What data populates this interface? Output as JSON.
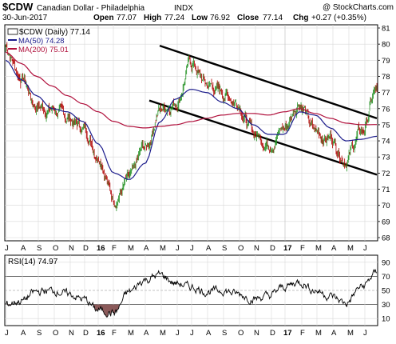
{
  "header": {
    "symbol": "$CDW",
    "name": "Canadian Dollar - Philadelphia",
    "exchange": "INDX",
    "watermark": "@ StockCharts.com",
    "date": "30-Jun-2017",
    "open_label": "Open",
    "open": "77.07",
    "high_label": "High",
    "high": "77.24",
    "low_label": "Low",
    "low": "76.92",
    "close_label": "Close",
    "close": "77.14",
    "chg_label": "Chg",
    "chg": "+0.27 (+0.35%)"
  },
  "legend": {
    "price": "$CDW (Daily) 77.14",
    "ma50": "MA(50) 74.28",
    "ma200": "MA(200) 75.01",
    "rsi": "RSI(14) 74.97"
  },
  "colors": {
    "up": "#1f8f1f",
    "down": "#b00000",
    "ma50": "#1c1c8c",
    "ma200": "#b0103c",
    "channel": "#000000",
    "rsi_line": "#000000",
    "rsi_fill": "#8b5a5a",
    "grid": "#d8d8d8"
  },
  "chart_data": [
    {
      "type": "line",
      "title": "$CDW Canadian Dollar - Philadelphia INDX",
      "ylim": [
        68,
        81
      ],
      "yticks": [
        68,
        69,
        70,
        71,
        72,
        73,
        74,
        75,
        76,
        77,
        78,
        79,
        80,
        81
      ],
      "x_tick_labels": [
        "J",
        "A",
        "S",
        "O",
        "N",
        "D",
        "16",
        "F",
        "M",
        "A",
        "M",
        "J",
        "J",
        "A",
        "S",
        "O",
        "N",
        "D",
        "17",
        "F",
        "M",
        "A",
        "M",
        "J"
      ],
      "grid": true,
      "series": [
        {
          "name": "$CDW (Daily)",
          "x": [
            0,
            1,
            2,
            3,
            4,
            5,
            6,
            7,
            8,
            9,
            10,
            11,
            12,
            13,
            14,
            15,
            16,
            17,
            18,
            19,
            20,
            21,
            22,
            23,
            24
          ],
          "values": [
            79.8,
            78.0,
            76.2,
            76.0,
            75.4,
            74.8,
            73.3,
            70.5,
            71.5,
            73.5,
            76.0,
            76.5,
            78.8,
            77.5,
            77.0,
            76.5,
            74.5,
            74.0,
            74.8,
            76.5,
            74.5,
            74.2,
            73.0,
            74.5,
            77.14
          ]
        },
        {
          "name": "MA(50)",
          "x": [
            0,
            1,
            2,
            3,
            4,
            5,
            6,
            7,
            8,
            9,
            10,
            11,
            12,
            13,
            14,
            15,
            16,
            17,
            18,
            19,
            20,
            21,
            22,
            23,
            24
          ],
          "values": [
            79.0,
            77.8,
            76.8,
            76.0,
            75.8,
            75.2,
            73.8,
            72.0,
            71.6,
            72.6,
            75.2,
            76.6,
            77.2,
            77.0,
            76.4,
            76.0,
            75.0,
            74.4,
            74.4,
            75.8,
            75.6,
            74.8,
            74.0,
            74.1,
            74.28
          ]
        },
        {
          "name": "MA(200)",
          "x": [
            0,
            1,
            2,
            3,
            4,
            5,
            6,
            7,
            8,
            9,
            10,
            11,
            12,
            13,
            14,
            15,
            16,
            17,
            18,
            19,
            20,
            21,
            22,
            23,
            24
          ],
          "values": [
            79.5,
            78.8,
            78.0,
            77.4,
            76.8,
            76.3,
            75.8,
            75.2,
            74.9,
            74.8,
            74.9,
            75.0,
            75.2,
            75.4,
            75.6,
            75.7,
            75.7,
            75.6,
            75.8,
            76.0,
            75.7,
            75.4,
            75.1,
            75.0,
            75.01
          ]
        }
      ]
    },
    {
      "type": "line",
      "title": "RSI(14)",
      "ylim": [
        0,
        100
      ],
      "yticks": [
        10,
        30,
        50,
        70,
        90
      ],
      "x_tick_labels": [
        "J",
        "A",
        "S",
        "O",
        "N",
        "D",
        "16",
        "F",
        "M",
        "A",
        "M",
        "J",
        "J",
        "A",
        "S",
        "O",
        "N",
        "D",
        "17",
        "F",
        "M",
        "A",
        "M",
        "J"
      ],
      "series": [
        {
          "name": "RSI(14)",
          "x": [
            0,
            1,
            2,
            3,
            4,
            5,
            6,
            7,
            8,
            9,
            10,
            11,
            12,
            13,
            14,
            15,
            16,
            17,
            18,
            19,
            20,
            21,
            22,
            23,
            24
          ],
          "values": [
            30,
            35,
            48,
            50,
            45,
            38,
            22,
            18,
            48,
            65,
            72,
            60,
            55,
            48,
            50,
            45,
            38,
            42,
            55,
            62,
            50,
            42,
            32,
            55,
            74.97
          ]
        }
      ]
    }
  ]
}
